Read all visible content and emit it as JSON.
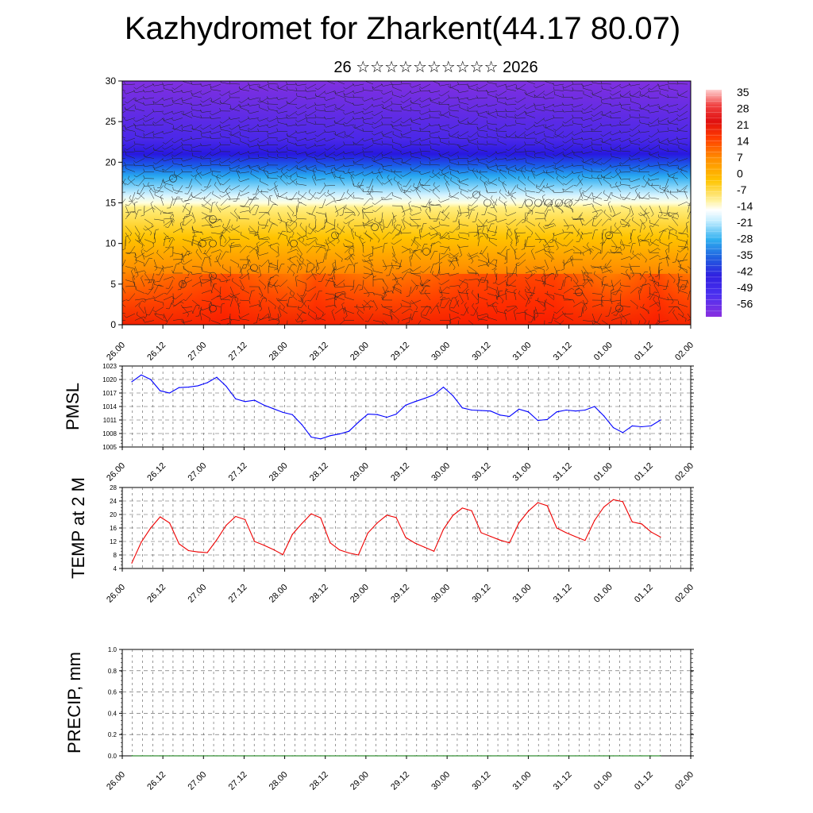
{
  "title": "Kazhydromet for Zharkent(44.17 80.07)",
  "subtitle": "26 ☆☆☆☆☆☆☆☆☆☆ 2026",
  "time_labels": [
    "26.00",
    "26.12",
    "27.00",
    "27.12",
    "28.00",
    "28.12",
    "29.00",
    "29.12",
    "30.00",
    "30.12",
    "31.00",
    "31.12",
    "01.00",
    "01.12",
    "02.00"
  ],
  "colors": {
    "pmsl_line": "#0000ff",
    "temp_line": "#ee0000",
    "precip_line": "#007000"
  },
  "chart_data": [
    {
      "type": "heatmap",
      "name": "cross-section",
      "ylim": [
        0,
        30
      ],
      "y_ticks": [
        0,
        5,
        10,
        15,
        20,
        25,
        30
      ],
      "colorbar_labels": [
        "35",
        "28",
        "21",
        "14",
        "7",
        "0",
        "-7",
        "-14",
        "-21",
        "-28",
        "-35",
        "-42",
        "-49",
        "-56"
      ]
    },
    {
      "type": "line",
      "name": "pmsl",
      "ylabel": "PMSL",
      "ylim": [
        1005,
        1023
      ],
      "y_ticks": [
        "1023",
        "1020",
        "1017",
        "1014",
        "1011",
        "1008",
        "1005"
      ],
      "values": [
        1019.5,
        1021,
        1020,
        1017.5,
        1017,
        1018.2,
        1018.3,
        1018.6,
        1019.3,
        1020.5,
        1018.5,
        1015.7,
        1015.1,
        1015.4,
        1014.3,
        1013.5,
        1012.7,
        1012.2,
        1010,
        1007.2,
        1006.8,
        1007.5,
        1007.9,
        1008.5,
        1010.5,
        1012.3,
        1012.2,
        1011.6,
        1012.3,
        1014.3,
        1015.1,
        1015.8,
        1016.6,
        1018.3,
        1016.4,
        1013.7,
        1013.2,
        1013.1,
        1013,
        1012.1,
        1011.8,
        1013.4,
        1012.8,
        1010.9,
        1011.1,
        1012.8,
        1013.2,
        1013,
        1013.2,
        1014,
        1011.9,
        1009.3,
        1008.2,
        1009.7,
        1009.5,
        1009.7,
        1011
      ]
    },
    {
      "type": "line",
      "name": "temp",
      "ylabel": "TEMP at 2 M",
      "ylim": [
        4,
        28
      ],
      "y_ticks": [
        "28",
        "24",
        "20",
        "16",
        "12",
        "8",
        "4"
      ],
      "values": [
        5.6,
        11.8,
        16,
        19.3,
        17.5,
        11.3,
        9.3,
        8.9,
        8.7,
        12.5,
        16.8,
        19.4,
        18.5,
        12,
        10.9,
        9.6,
        8.1,
        14.1,
        17.3,
        20.2,
        19,
        11.6,
        9.5,
        8.6,
        8,
        14.5,
        17.5,
        19.8,
        19.1,
        13.2,
        11.5,
        10.3,
        9.1,
        15.6,
        19.7,
        21.9,
        21.1,
        14.6,
        13.5,
        12.4,
        11.6,
        17.5,
        21,
        23.5,
        22.6,
        16,
        14.6,
        13.4,
        12.3,
        18.2,
        22.2,
        24.4,
        23.8,
        17.8,
        17.2,
        14.8,
        13.3
      ]
    },
    {
      "type": "line",
      "name": "precip",
      "ylabel": "PRECIP, mm",
      "ylim": [
        0,
        1
      ],
      "y_ticks": [
        "1.0",
        "0.8",
        "0.6",
        "0.4",
        "0.2",
        "0.0"
      ],
      "values": [
        0,
        0,
        0,
        0,
        0,
        0,
        0,
        0,
        0,
        0,
        0,
        0,
        0,
        0,
        0,
        0,
        0,
        0,
        0,
        0,
        0,
        0,
        0,
        0,
        0,
        0,
        0,
        0,
        0,
        0,
        0,
        0,
        0,
        0,
        0,
        0,
        0,
        0,
        0,
        0,
        0,
        0,
        0,
        0,
        0,
        0,
        0,
        0,
        0,
        0,
        0,
        0,
        0,
        0,
        0,
        0,
        0
      ]
    }
  ]
}
